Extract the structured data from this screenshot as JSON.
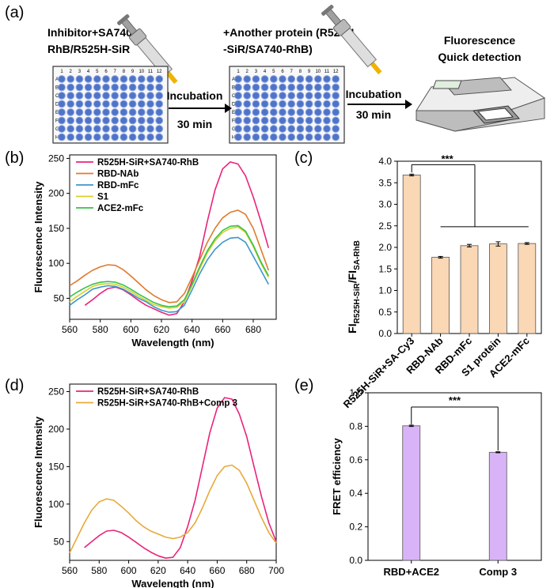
{
  "panels": {
    "a": "(a)",
    "b": "(b)",
    "c": "(c)",
    "d": "(d)",
    "e": "(e)"
  },
  "workflow": {
    "step1_line1": "Inhibitor+SA740-",
    "step1_line2": "RhB/R525H-SiR",
    "step2_line1": "+Another protein (R525H",
    "step2_line2": "-SiR/SA740-RhB)",
    "step3_line1": "Fluorescence",
    "step3_line2": "Quick detection",
    "arrow_label_top": "Incubation",
    "arrow_label_bottom": "30 min",
    "plate_cols": [
      "1",
      "2",
      "3",
      "4",
      "5",
      "6",
      "7",
      "8",
      "9",
      "10",
      "11",
      "12"
    ],
    "plate_rows": [
      "A",
      "B",
      "C",
      "D",
      "E",
      "F",
      "G",
      "H"
    ]
  },
  "chart_data": [
    {
      "panel": "b",
      "type": "line",
      "xlabel": "Wavelength (nm)",
      "ylabel": "Fluorescence Intensity",
      "xlim": [
        560,
        695
      ],
      "ylim": [
        20,
        255
      ],
      "xticks": [
        560,
        580,
        600,
        620,
        640,
        660,
        680
      ],
      "yticks": [
        50,
        100,
        150,
        200,
        250
      ],
      "legend_position": "top-left",
      "series": [
        {
          "name": "R525H-SiR+SA740-RhB",
          "color": "#e8247a",
          "x": [
            570,
            575,
            580,
            585,
            590,
            595,
            600,
            605,
            610,
            615,
            620,
            625,
            630,
            635,
            640,
            645,
            650,
            655,
            660,
            665,
            670,
            675,
            680,
            685,
            690
          ],
          "y": [
            40,
            48,
            57,
            64,
            66,
            62,
            55,
            47,
            40,
            35,
            30,
            26,
            28,
            45,
            75,
            110,
            160,
            205,
            235,
            245,
            242,
            225,
            195,
            160,
            122
          ]
        },
        {
          "name": "RBD-NAb",
          "color": "#e07a2c",
          "x": [
            560,
            565,
            570,
            575,
            580,
            585,
            590,
            595,
            600,
            605,
            610,
            615,
            620,
            625,
            630,
            635,
            640,
            645,
            650,
            655,
            660,
            665,
            670,
            675,
            680,
            685,
            690
          ],
          "y": [
            68,
            75,
            83,
            90,
            95,
            98,
            97,
            91,
            82,
            72,
            62,
            54,
            48,
            44,
            45,
            57,
            80,
            105,
            130,
            150,
            165,
            173,
            176,
            170,
            150,
            120,
            90
          ]
        },
        {
          "name": "RBD-mFc",
          "color": "#3b96cf",
          "x": [
            560,
            565,
            570,
            575,
            580,
            585,
            590,
            595,
            600,
            605,
            610,
            615,
            620,
            625,
            630,
            635,
            640,
            645,
            650,
            655,
            660,
            665,
            670,
            675,
            680,
            685,
            690
          ],
          "y": [
            40,
            48,
            55,
            63,
            66,
            68,
            67,
            63,
            57,
            50,
            45,
            38,
            33,
            30,
            31,
            40,
            62,
            85,
            105,
            120,
            130,
            136,
            137,
            130,
            110,
            90,
            70
          ]
        },
        {
          "name": "S1",
          "color": "#d8cf2e",
          "x": [
            560,
            565,
            570,
            575,
            580,
            585,
            590,
            595,
            600,
            605,
            610,
            615,
            620,
            625,
            630,
            635,
            640,
            645,
            650,
            655,
            660,
            665,
            670,
            675,
            680,
            685,
            690
          ],
          "y": [
            45,
            53,
            60,
            67,
            70,
            71,
            70,
            66,
            60,
            53,
            47,
            41,
            38,
            36,
            37,
            45,
            68,
            92,
            115,
            132,
            144,
            150,
            152,
            144,
            124,
            100,
            80
          ]
        },
        {
          "name": "ACE2-mFc",
          "color": "#36c247",
          "x": [
            560,
            565,
            570,
            575,
            580,
            585,
            590,
            595,
            600,
            605,
            610,
            615,
            620,
            625,
            630,
            635,
            640,
            645,
            650,
            655,
            660,
            665,
            670,
            675,
            680,
            685,
            690
          ],
          "y": [
            52,
            59,
            65,
            70,
            73,
            74,
            73,
            69,
            63,
            56,
            50,
            44,
            40,
            38,
            39,
            48,
            70,
            95,
            118,
            135,
            147,
            153,
            154,
            146,
            126,
            102,
            82
          ]
        }
      ]
    },
    {
      "panel": "c",
      "type": "bar",
      "ylabel_main": "FI",
      "ylabel_sub1": "R525H-SiR",
      "ylabel_mid": "/FI",
      "ylabel_sub2": "SA-RhB",
      "ylim": [
        0,
        4.0
      ],
      "yticks": [
        "0.0",
        "0.5",
        "1.0",
        "1.5",
        "2.0",
        "2.5",
        "3.0",
        "3.5",
        "4.0"
      ],
      "categories": [
        "R525H-SiR+SA-Cy3",
        "RBD-NAb",
        "RBD-mFc",
        "S1 protein",
        "ACE2-mFc"
      ],
      "values": [
        3.68,
        1.77,
        2.04,
        2.08,
        2.09
      ],
      "errors": [
        0.02,
        0.02,
        0.03,
        0.05,
        0.02
      ],
      "bar_color": "#fad7b5",
      "significance": "***"
    },
    {
      "panel": "d",
      "type": "line",
      "xlabel": "Wavelength (nm)",
      "ylabel": "Fluorescence Intensity",
      "xlim": [
        560,
        700
      ],
      "ylim": [
        25,
        260
      ],
      "xticks": [
        560,
        580,
        600,
        620,
        640,
        660,
        680,
        700
      ],
      "yticks": [
        50,
        100,
        150,
        200,
        250
      ],
      "legend_position": "top-left",
      "series": [
        {
          "name": "R525H-SiR+SA740-RhB",
          "color": "#e8247a",
          "x": [
            570,
            575,
            580,
            585,
            590,
            595,
            600,
            605,
            610,
            615,
            620,
            625,
            630,
            635,
            640,
            645,
            650,
            655,
            660,
            665,
            670,
            675,
            680,
            685,
            690,
            695,
            700
          ],
          "y": [
            42,
            50,
            58,
            64,
            65,
            62,
            56,
            49,
            42,
            36,
            31,
            28,
            29,
            42,
            70,
            105,
            150,
            195,
            228,
            242,
            240,
            220,
            190,
            150,
            110,
            75,
            50
          ]
        },
        {
          "name": "R525H-SiR+SA740-RhB+Comp 3",
          "color": "#e8a93a",
          "x": [
            560,
            565,
            570,
            575,
            580,
            585,
            590,
            595,
            600,
            605,
            610,
            615,
            620,
            625,
            630,
            635,
            640,
            645,
            650,
            655,
            660,
            665,
            670,
            675,
            680,
            685,
            690,
            695,
            700
          ],
          "y": [
            35,
            55,
            75,
            92,
            103,
            107,
            105,
            97,
            88,
            78,
            70,
            64,
            60,
            56,
            54,
            56,
            62,
            75,
            95,
            118,
            138,
            150,
            152,
            145,
            128,
            105,
            82,
            62,
            48
          ]
        }
      ]
    },
    {
      "panel": "e",
      "type": "bar",
      "ylabel": "FRET efficiency",
      "ylim": [
        0,
        1.0
      ],
      "yticks": [
        "0.0",
        "0.2",
        "0.4",
        "0.6",
        "0.8",
        "1.0"
      ],
      "categories": [
        "RBD+ACE2",
        "Comp 3"
      ],
      "values": [
        0.803,
        0.645
      ],
      "errors": [
        0.004,
        0.003
      ],
      "bar_color": "#d9b3f7",
      "significance": "***"
    }
  ]
}
